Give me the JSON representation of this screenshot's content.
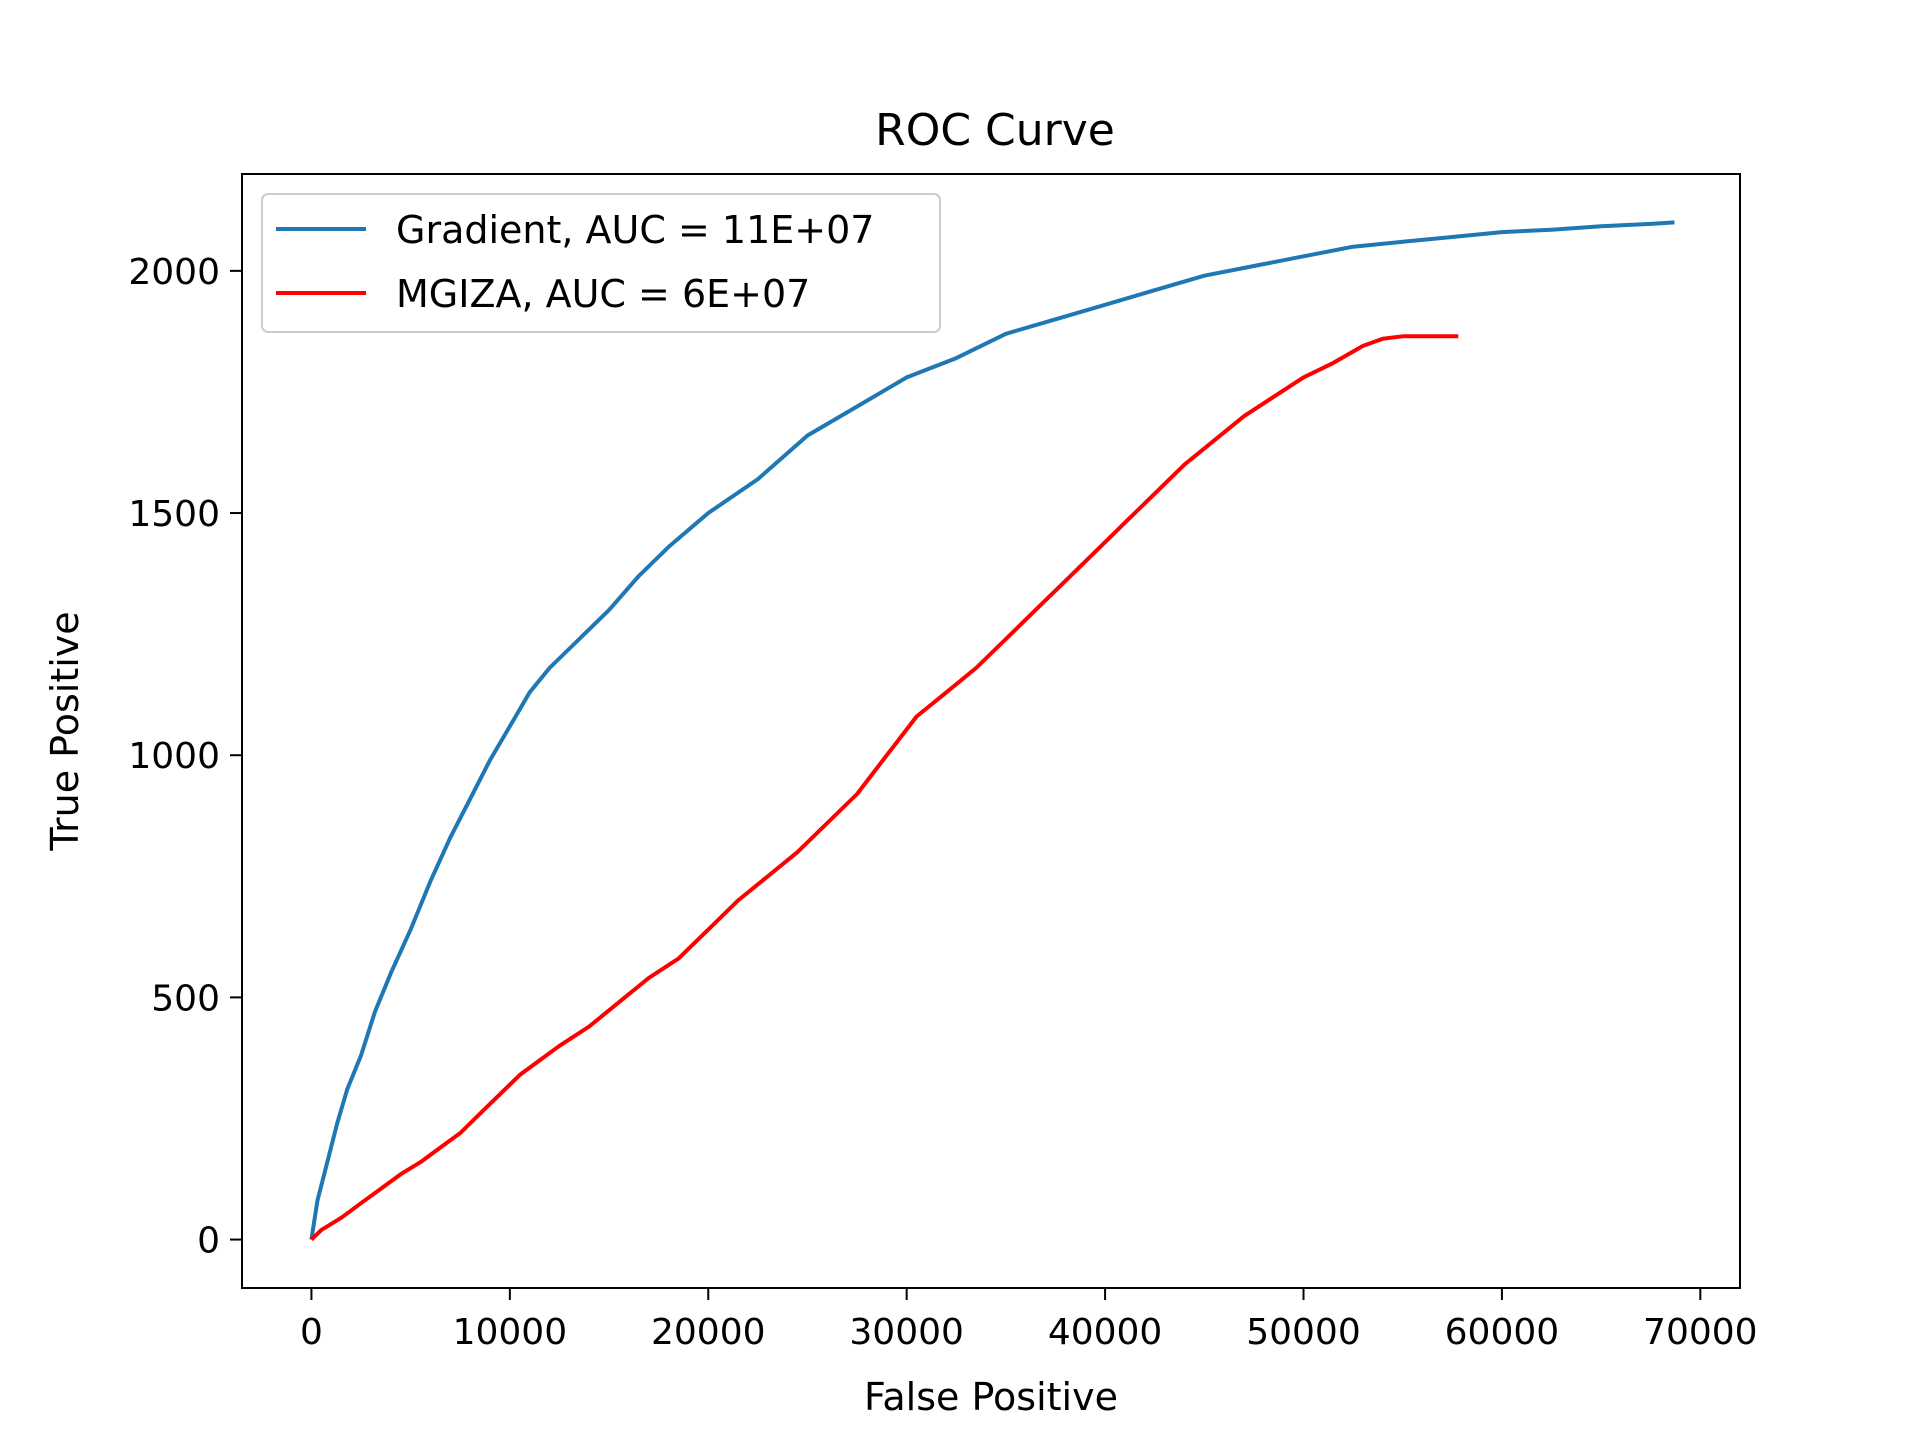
{
  "chart_data": {
    "type": "line",
    "title": "ROC Curve",
    "xlabel": "False Positive",
    "ylabel": "True Positive",
    "xlim": [
      -3500,
      72000
    ],
    "ylim": [
      -100,
      2200
    ],
    "xticks": [
      0,
      10000,
      20000,
      30000,
      40000,
      50000,
      60000,
      70000
    ],
    "yticks": [
      0,
      500,
      1000,
      1500,
      2000
    ],
    "grid": false,
    "legend_position": "top-left",
    "series": [
      {
        "name": "Gradient, AUC = 11E+07",
        "color": "#1f77b4",
        "points": [
          [
            0,
            0
          ],
          [
            300,
            80
          ],
          [
            800,
            160
          ],
          [
            1300,
            240
          ],
          [
            1800,
            310
          ],
          [
            2500,
            380
          ],
          [
            3200,
            470
          ],
          [
            4000,
            550
          ],
          [
            5000,
            640
          ],
          [
            6000,
            740
          ],
          [
            7000,
            830
          ],
          [
            8000,
            910
          ],
          [
            9000,
            990
          ],
          [
            10000,
            1060
          ],
          [
            11000,
            1130
          ],
          [
            12000,
            1180
          ],
          [
            13500,
            1240
          ],
          [
            15000,
            1300
          ],
          [
            16500,
            1370
          ],
          [
            18000,
            1430
          ],
          [
            20000,
            1500
          ],
          [
            22500,
            1570
          ],
          [
            25000,
            1660
          ],
          [
            27500,
            1720
          ],
          [
            30000,
            1780
          ],
          [
            32500,
            1820
          ],
          [
            35000,
            1870
          ],
          [
            37500,
            1900
          ],
          [
            40000,
            1930
          ],
          [
            42500,
            1960
          ],
          [
            45000,
            1990
          ],
          [
            47500,
            2010
          ],
          [
            50000,
            2030
          ],
          [
            52500,
            2050
          ],
          [
            55000,
            2060
          ],
          [
            57500,
            2070
          ],
          [
            60000,
            2080
          ],
          [
            62500,
            2085
          ],
          [
            65000,
            2092
          ],
          [
            67500,
            2097
          ],
          [
            68700,
            2100
          ]
        ]
      },
      {
        "name": "MGIZA, AUC = 6E+07",
        "color": "#ff0000",
        "points": [
          [
            0,
            0
          ],
          [
            500,
            20
          ],
          [
            1500,
            45
          ],
          [
            2500,
            75
          ],
          [
            3500,
            105
          ],
          [
            4500,
            135
          ],
          [
            5500,
            160
          ],
          [
            6500,
            190
          ],
          [
            7500,
            220
          ],
          [
            8500,
            260
          ],
          [
            9500,
            300
          ],
          [
            10500,
            340
          ],
          [
            11500,
            370
          ],
          [
            12500,
            400
          ],
          [
            14000,
            440
          ],
          [
            15500,
            490
          ],
          [
            17000,
            540
          ],
          [
            18500,
            580
          ],
          [
            20000,
            640
          ],
          [
            21500,
            700
          ],
          [
            23000,
            750
          ],
          [
            24500,
            800
          ],
          [
            26000,
            860
          ],
          [
            27500,
            920
          ],
          [
            29000,
            1000
          ],
          [
            30500,
            1080
          ],
          [
            32000,
            1130
          ],
          [
            33500,
            1180
          ],
          [
            35000,
            1240
          ],
          [
            36500,
            1300
          ],
          [
            38000,
            1360
          ],
          [
            39500,
            1420
          ],
          [
            41000,
            1480
          ],
          [
            42500,
            1540
          ],
          [
            44000,
            1600
          ],
          [
            45500,
            1650
          ],
          [
            47000,
            1700
          ],
          [
            48500,
            1740
          ],
          [
            50000,
            1780
          ],
          [
            51500,
            1810
          ],
          [
            53000,
            1845
          ],
          [
            54000,
            1860
          ],
          [
            55000,
            1865
          ],
          [
            57800,
            1865
          ]
        ]
      }
    ]
  }
}
